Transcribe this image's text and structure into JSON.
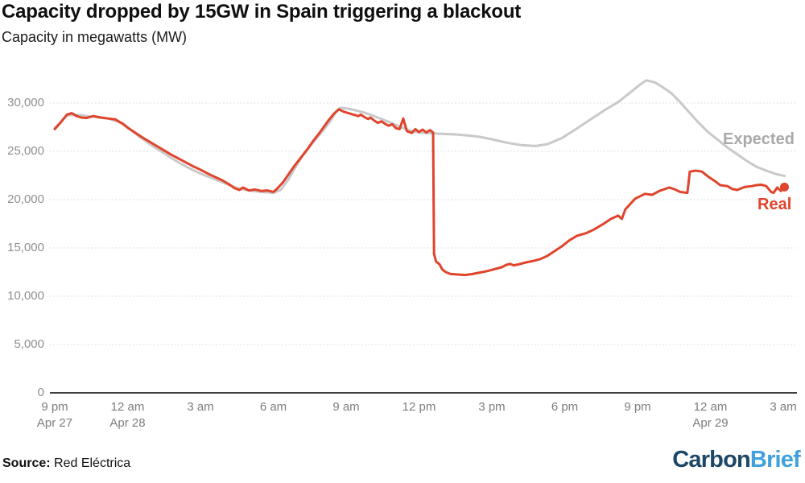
{
  "header": {
    "title": "Capacity dropped by 15GW in Spain triggering a blackout",
    "subtitle": "Capacity in megawatts (MW)"
  },
  "colors": {
    "real": "#e0442c",
    "expected": "#c9c9c9",
    "expected_label": "#a9a9a9",
    "grid": "#dedede",
    "axis": "#404040",
    "y_tick_label": "#8f8f8f",
    "x_tick_label": "#7d7d7d",
    "title": "#0f0f0f",
    "brand_carbon": "#1d4766",
    "brand_brief": "#3fa0dc"
  },
  "chart_data": {
    "type": "line",
    "title": "Capacity dropped by 15GW in Spain triggering a blackout",
    "subtitle": "Capacity in megawatts (MW)",
    "grid": "horizontal-dotted",
    "legend_position": "inline-annotations",
    "x_axis": {
      "unit": "hours since 9 pm Apr 27",
      "range": [
        0,
        30.2
      ],
      "ticks": [
        {
          "t": 0,
          "label": "9 pm",
          "sub": "Apr 27"
        },
        {
          "t": 3,
          "label": "12 am",
          "sub": "Apr 28"
        },
        {
          "t": 6,
          "label": "3 am",
          "sub": ""
        },
        {
          "t": 9,
          "label": "6 am",
          "sub": ""
        },
        {
          "t": 12,
          "label": "9 am",
          "sub": ""
        },
        {
          "t": 15,
          "label": "12 pm",
          "sub": ""
        },
        {
          "t": 18,
          "label": "3 pm",
          "sub": ""
        },
        {
          "t": 21,
          "label": "6 pm",
          "sub": ""
        },
        {
          "t": 24,
          "label": "9 pm",
          "sub": ""
        },
        {
          "t": 27,
          "label": "12 am",
          "sub": "Apr 29"
        },
        {
          "t": 30,
          "label": "3 am",
          "sub": ""
        }
      ]
    },
    "y_axis": {
      "label": "Capacity in megawatts (MW)",
      "range": [
        0,
        33000
      ],
      "ticks": [
        0,
        5000,
        10000,
        15000,
        20000,
        25000,
        30000
      ],
      "tick_labels": [
        "0",
        "5,000",
        "10,000",
        "15,000",
        "20,000",
        "25,000",
        "30,000"
      ]
    },
    "series": [
      {
        "name": "Expected",
        "color": "#c9c9c9",
        "end_dot": false,
        "points": [
          [
            0,
            27400
          ],
          [
            0.5,
            28700
          ],
          [
            0.8,
            28800
          ],
          [
            1.5,
            28600
          ],
          [
            2.2,
            28400
          ],
          [
            2.8,
            27900
          ],
          [
            3,
            27500
          ],
          [
            3.5,
            26500
          ],
          [
            4,
            25600
          ],
          [
            4.5,
            24800
          ],
          [
            5,
            24000
          ],
          [
            5.5,
            23300
          ],
          [
            6,
            22700
          ],
          [
            6.5,
            22200
          ],
          [
            7,
            21700
          ],
          [
            7.5,
            21200
          ],
          [
            8,
            20950
          ],
          [
            8.5,
            20800
          ],
          [
            9,
            20700
          ],
          [
            9.3,
            21000
          ],
          [
            9.6,
            22000
          ],
          [
            9.9,
            23300
          ],
          [
            10.2,
            24500
          ],
          [
            10.5,
            25500
          ],
          [
            10.8,
            26400
          ],
          [
            11.1,
            27300
          ],
          [
            11.4,
            28300
          ],
          [
            11.6,
            29150
          ],
          [
            11.75,
            29500
          ],
          [
            12,
            29450
          ],
          [
            12.3,
            29300
          ],
          [
            12.7,
            29050
          ],
          [
            13.1,
            28700
          ],
          [
            13.5,
            28300
          ],
          [
            13.9,
            27900
          ],
          [
            14.3,
            27450
          ],
          [
            14.7,
            27100
          ],
          [
            15,
            26950
          ],
          [
            15.3,
            26900
          ],
          [
            15.6,
            26850
          ],
          [
            16,
            26800
          ],
          [
            16.5,
            26750
          ],
          [
            17,
            26650
          ],
          [
            17.5,
            26500
          ],
          [
            18,
            26250
          ],
          [
            18.6,
            25900
          ],
          [
            19.2,
            25650
          ],
          [
            19.8,
            25550
          ],
          [
            20.3,
            25750
          ],
          [
            20.9,
            26400
          ],
          [
            21.4,
            27200
          ],
          [
            22,
            28200
          ],
          [
            22.6,
            29200
          ],
          [
            23.2,
            30100
          ],
          [
            23.7,
            31100
          ],
          [
            24.1,
            31900
          ],
          [
            24.35,
            32350
          ],
          [
            24.7,
            32150
          ],
          [
            25,
            31700
          ],
          [
            25.4,
            31000
          ],
          [
            25.75,
            30100
          ],
          [
            26.1,
            29100
          ],
          [
            26.5,
            28000
          ],
          [
            26.9,
            27000
          ],
          [
            27.3,
            26200
          ],
          [
            27.7,
            25400
          ],
          [
            28.1,
            24700
          ],
          [
            28.5,
            24000
          ],
          [
            28.9,
            23400
          ],
          [
            29.3,
            23000
          ],
          [
            29.7,
            22650
          ],
          [
            30.05,
            22450
          ]
        ]
      },
      {
        "name": "Real",
        "color": "#e0442c",
        "end_dot": true,
        "points": [
          [
            0,
            27300
          ],
          [
            0.25,
            28000
          ],
          [
            0.5,
            28800
          ],
          [
            0.7,
            28950
          ],
          [
            0.9,
            28650
          ],
          [
            1.1,
            28500
          ],
          [
            1.3,
            28450
          ],
          [
            1.6,
            28650
          ],
          [
            1.9,
            28500
          ],
          [
            2.2,
            28400
          ],
          [
            2.5,
            28300
          ],
          [
            2.8,
            27850
          ],
          [
            3,
            27450
          ],
          [
            3.3,
            26950
          ],
          [
            3.6,
            26450
          ],
          [
            3.9,
            26000
          ],
          [
            4.2,
            25550
          ],
          [
            4.5,
            25100
          ],
          [
            4.8,
            24650
          ],
          [
            5.1,
            24250
          ],
          [
            5.4,
            23850
          ],
          [
            5.7,
            23450
          ],
          [
            6,
            23100
          ],
          [
            6.3,
            22700
          ],
          [
            6.6,
            22350
          ],
          [
            6.9,
            22000
          ],
          [
            7.2,
            21550
          ],
          [
            7.4,
            21200
          ],
          [
            7.6,
            21000
          ],
          [
            7.75,
            21250
          ],
          [
            8,
            20950
          ],
          [
            8.25,
            21050
          ],
          [
            8.5,
            20900
          ],
          [
            8.75,
            20950
          ],
          [
            9,
            20800
          ],
          [
            9.15,
            21100
          ],
          [
            9.4,
            21800
          ],
          [
            9.65,
            22700
          ],
          [
            9.9,
            23600
          ],
          [
            10.15,
            24400
          ],
          [
            10.4,
            25200
          ],
          [
            10.65,
            26100
          ],
          [
            10.9,
            26900
          ],
          [
            11.1,
            27600
          ],
          [
            11.3,
            28300
          ],
          [
            11.5,
            28900
          ],
          [
            11.7,
            29350
          ],
          [
            11.9,
            29100
          ],
          [
            12.1,
            28950
          ],
          [
            12.3,
            28800
          ],
          [
            12.5,
            28650
          ],
          [
            12.6,
            28800
          ],
          [
            12.75,
            28550
          ],
          [
            12.9,
            28350
          ],
          [
            13,
            28500
          ],
          [
            13.15,
            28200
          ],
          [
            13.3,
            27950
          ],
          [
            13.45,
            28100
          ],
          [
            13.6,
            27850
          ],
          [
            13.75,
            27650
          ],
          [
            13.9,
            27800
          ],
          [
            14.05,
            27400
          ],
          [
            14.2,
            27300
          ],
          [
            14.35,
            28400
          ],
          [
            14.5,
            27100
          ],
          [
            14.7,
            26900
          ],
          [
            14.85,
            27300
          ],
          [
            15,
            27000
          ],
          [
            15.15,
            27250
          ],
          [
            15.3,
            26950
          ],
          [
            15.45,
            27200
          ],
          [
            15.58,
            26950
          ],
          [
            15.62,
            14400
          ],
          [
            15.7,
            13600
          ],
          [
            15.85,
            13300
          ],
          [
            15.95,
            12800
          ],
          [
            16.1,
            12500
          ],
          [
            16.3,
            12300
          ],
          [
            16.6,
            12250
          ],
          [
            16.9,
            12200
          ],
          [
            17.2,
            12300
          ],
          [
            17.5,
            12450
          ],
          [
            17.8,
            12600
          ],
          [
            18.1,
            12800
          ],
          [
            18.4,
            13000
          ],
          [
            18.6,
            13250
          ],
          [
            18.75,
            13350
          ],
          [
            18.9,
            13200
          ],
          [
            19.1,
            13300
          ],
          [
            19.4,
            13500
          ],
          [
            19.7,
            13650
          ],
          [
            20,
            13850
          ],
          [
            20.3,
            14200
          ],
          [
            20.6,
            14700
          ],
          [
            20.9,
            15200
          ],
          [
            21.2,
            15800
          ],
          [
            21.5,
            16250
          ],
          [
            21.9,
            16550
          ],
          [
            22.2,
            16900
          ],
          [
            22.6,
            17500
          ],
          [
            22.9,
            18000
          ],
          [
            23.2,
            18350
          ],
          [
            23.35,
            18000
          ],
          [
            23.5,
            19000
          ],
          [
            23.9,
            20100
          ],
          [
            24.3,
            20600
          ],
          [
            24.6,
            20500
          ],
          [
            24.9,
            20900
          ],
          [
            25.3,
            21250
          ],
          [
            25.5,
            21100
          ],
          [
            25.75,
            20800
          ],
          [
            26.05,
            20700
          ],
          [
            26.15,
            22900
          ],
          [
            26.4,
            23000
          ],
          [
            26.65,
            22900
          ],
          [
            26.9,
            22400
          ],
          [
            27.2,
            21900
          ],
          [
            27.4,
            21500
          ],
          [
            27.7,
            21400
          ],
          [
            27.9,
            21100
          ],
          [
            28.1,
            21000
          ],
          [
            28.4,
            21300
          ],
          [
            28.7,
            21400
          ],
          [
            28.9,
            21500
          ],
          [
            29.1,
            21550
          ],
          [
            29.3,
            21400
          ],
          [
            29.5,
            20800
          ],
          [
            29.6,
            20700
          ],
          [
            29.75,
            21250
          ],
          [
            29.9,
            20900
          ],
          [
            30.05,
            21300
          ]
        ]
      }
    ],
    "annotations": [
      {
        "text": "Expected",
        "color": "#a9a9a9",
        "x": 898,
        "y": 162
      },
      {
        "text": "Real",
        "color": "#e0442c",
        "x": 941,
        "y": 243
      }
    ]
  },
  "footer": {
    "source_label": "Source:",
    "source_value": " Red Eléctrica",
    "brand": {
      "carbon": "Carbon",
      "brief": "Brief"
    }
  }
}
